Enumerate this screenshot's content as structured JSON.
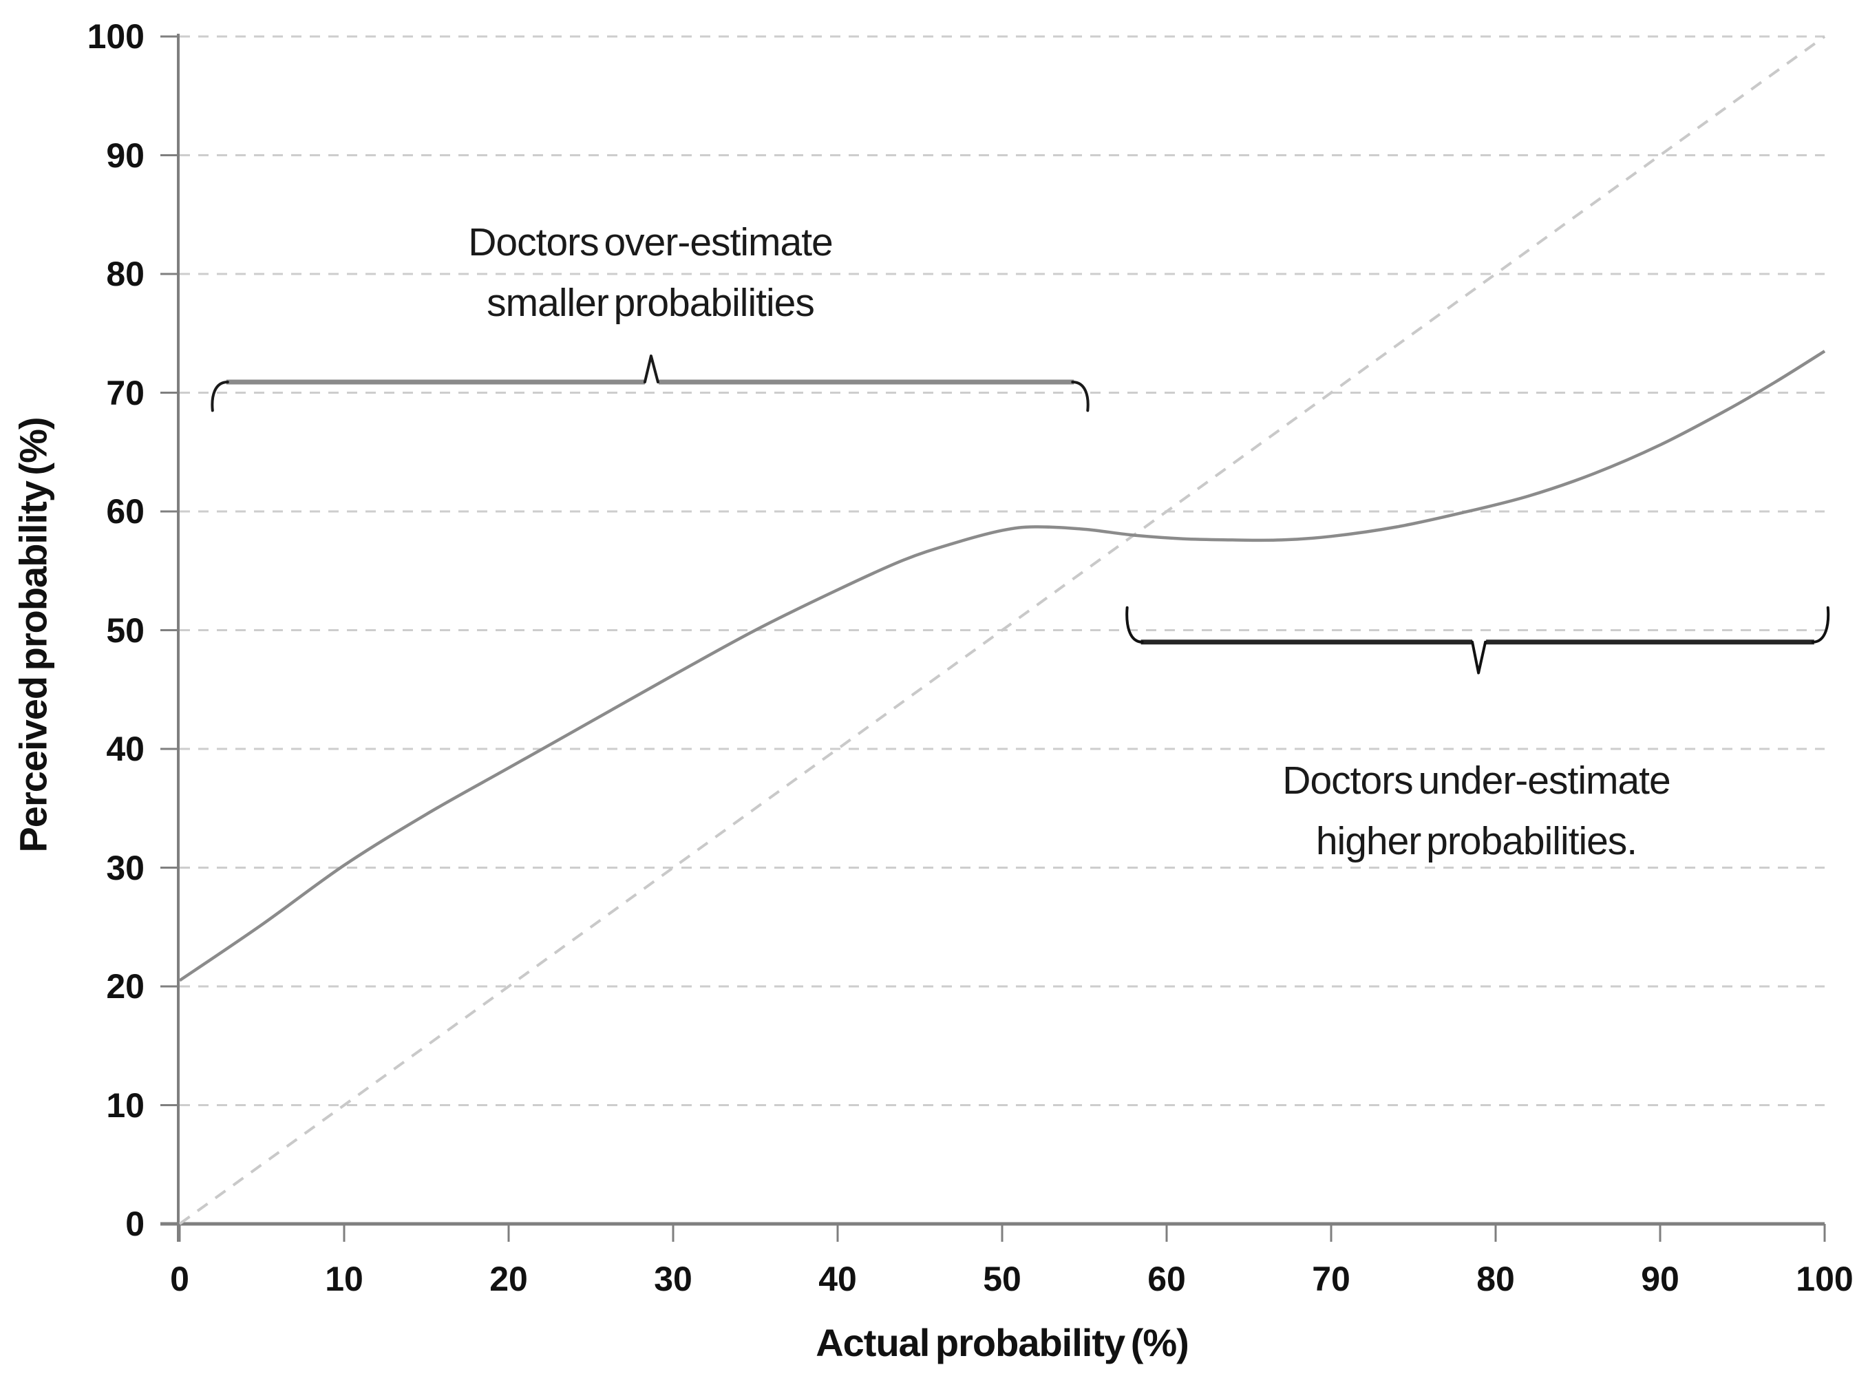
{
  "labels": {
    "x_title": "Actual probability (%)",
    "y_title": "Perceived probability (%)"
  },
  "annotations": {
    "overestimate": {
      "line1": "Doctors over-estimate",
      "line2": "smaller probabilities"
    },
    "underestimate": {
      "line1": "Doctors under-estimate",
      "line2": "higher probabilities."
    }
  },
  "chart_data": {
    "type": "line",
    "title": "",
    "xlabel": "Actual probability (%)",
    "ylabel": "Perceived probability (%)",
    "xlim": [
      0,
      100
    ],
    "ylim": [
      0,
      100
    ],
    "x_ticks": [
      0,
      10,
      20,
      30,
      40,
      50,
      60,
      70,
      80,
      90,
      100
    ],
    "y_ticks": [
      0,
      10,
      20,
      30,
      40,
      50,
      60,
      70,
      80,
      90,
      100
    ],
    "grid": "horizontal dashed gridlines at every 10 units",
    "legend": "none",
    "series": [
      {
        "name": "identity-line (actual = perceived)",
        "style": "dashed",
        "color": "#c9c9c9",
        "points": [
          [
            0,
            0
          ],
          [
            100,
            100
          ]
        ]
      },
      {
        "name": "perceived-probability-curve",
        "style": "solid",
        "color": "#8b8b8b",
        "points": [
          [
            0,
            20.5
          ],
          [
            5,
            25.2
          ],
          [
            10,
            30.2
          ],
          [
            15,
            34.5
          ],
          [
            20,
            38.4
          ],
          [
            25,
            42.3
          ],
          [
            30,
            46.2
          ],
          [
            35,
            50.0
          ],
          [
            40,
            53.4
          ],
          [
            44,
            55.9
          ],
          [
            47,
            57.3
          ],
          [
            50,
            58.4
          ],
          [
            52,
            58.7
          ],
          [
            55,
            58.5
          ],
          [
            58,
            58.0
          ],
          [
            61,
            57.7
          ],
          [
            64,
            57.6
          ],
          [
            67,
            57.6
          ],
          [
            70,
            57.9
          ],
          [
            74,
            58.7
          ],
          [
            78,
            59.9
          ],
          [
            82,
            61.3
          ],
          [
            86,
            63.2
          ],
          [
            90,
            65.6
          ],
          [
            94,
            68.5
          ],
          [
            97,
            70.9
          ],
          [
            100,
            73.5
          ]
        ]
      }
    ],
    "braces": [
      {
        "name": "overestimate-brace",
        "y": 70.9,
        "x1": 2.0,
        "x2": 55.2,
        "tip_x": 28.7,
        "tip_dir": "up",
        "tip_y": 73.1,
        "hook_y": 68.5,
        "line_color": "#8a8a8a",
        "accent_color": "#1a1a1a"
      },
      {
        "name": "underestimate-brace",
        "y": 49.0,
        "x1": 57.6,
        "x2": 100.2,
        "tip_x": 79.0,
        "tip_dir": "down",
        "tip_y": 46.4,
        "hook_y": 51.9,
        "line_color": "#262626",
        "accent_color": "#111111"
      }
    ],
    "colors": {
      "background": "#ffffff",
      "axis": "#7f7f7f",
      "gridline": "#cdcdcd",
      "tick_text": "#111111"
    }
  }
}
